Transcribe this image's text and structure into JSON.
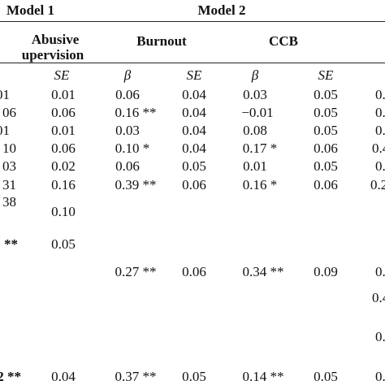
{
  "header": {
    "model1": "Model 1",
    "model2": "Model 2",
    "abusive_line1": "Abusive",
    "abusive_line2": "upervision",
    "burnout": "Burnout",
    "ccb": "CCB"
  },
  "subheader": {
    "se1": "SE",
    "beta_burnout": "β",
    "se_burnout": "SE",
    "beta_ccb": "β",
    "se_ccb": "SE"
  },
  "rows": [
    {
      "left": "01",
      "se1": "0.01",
      "b_beta": "0.06",
      "b_se": "0.04",
      "c_beta": "0.03",
      "c_se": "0.05",
      "right": "0."
    },
    {
      "left": "06",
      "se1": "0.06",
      "b_beta": "0.16 **",
      "b_se": "0.04",
      "c_beta": "−0.01",
      "c_se": "0.05",
      "right": "0."
    },
    {
      "left": "01",
      "se1": "0.01",
      "b_beta": "0.03",
      "b_se": "0.04",
      "c_beta": "0.08",
      "c_se": "0.05",
      "right": "0."
    },
    {
      "left": "10",
      "se1": "0.06",
      "b_beta": "0.10 *",
      "b_se": "0.04",
      "c_beta": "0.17 *",
      "c_se": "0.06",
      "right": "0.4"
    },
    {
      "left": "03",
      "se1": "0.02",
      "b_beta": "0.06",
      "b_se": "0.05",
      "c_beta": "0.01",
      "c_se": "0.05",
      "right": "0."
    },
    {
      "left": "31",
      "se1": "0.16",
      "b_beta": "0.39 **",
      "b_se": "0.06",
      "c_beta": "0.16 *",
      "c_se": "0.06",
      "right": "0.2"
    },
    {
      "left": "38",
      "se1": "",
      "b_beta": "",
      "b_se": "",
      "c_beta": "",
      "c_se": "",
      "right": ""
    },
    {
      "left": "",
      "se1": "0.10",
      "b_beta": "",
      "b_se": "",
      "c_beta": "",
      "c_se": "",
      "right": ""
    },
    {
      "left": "0 **",
      "se1": "0.05",
      "b_beta": "",
      "b_se": "",
      "c_beta": "",
      "c_se": "",
      "right": ""
    },
    {
      "left": "",
      "se1": "",
      "b_beta": "0.27 **",
      "b_se": "0.06",
      "c_beta": "0.34 **",
      "c_se": "0.09",
      "right": "0."
    },
    {
      "left": "",
      "se1": "",
      "b_beta": "",
      "b_se": "",
      "c_beta": "",
      "c_se": "",
      "right": "0.4"
    },
    {
      "left": "",
      "se1": "",
      "b_beta": "",
      "b_se": "",
      "c_beta": "",
      "c_se": "",
      "right": "0."
    },
    {
      "left": "2 **",
      "se1": "0.04",
      "b_beta": "0.37 **",
      "b_se": "0.05",
      "c_beta": "0.14 **",
      "c_se": "0.05",
      "right": "0."
    }
  ]
}
